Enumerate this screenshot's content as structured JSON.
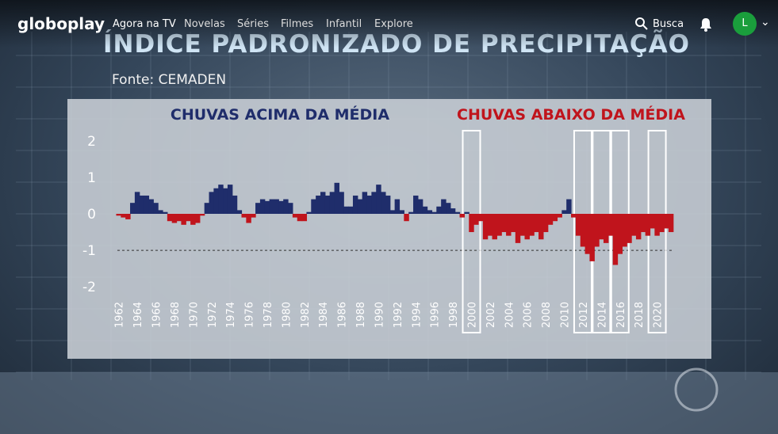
{
  "nav": {
    "logo": "globoplay",
    "items": [
      "Agora na TV",
      "Novelas",
      "Séries",
      "Filmes",
      "Infantil",
      "Explore"
    ],
    "search": "Busca",
    "avatar": "L"
  },
  "chart_data": {
    "type": "bar",
    "title": "ÍNDICE PADRONIZADO DE PRECIPITAÇÃO",
    "subtitle": "Fonte: CEMADEN",
    "annotations": [
      {
        "text": "CHUVAS ACIMA DA MÉDIA",
        "color": "#1f2d6b"
      },
      {
        "text": "CHUVAS ABAIXO DA MÉDIA",
        "color": "#c0141c"
      }
    ],
    "x": [
      1962,
      1962.5,
      1963,
      1963.5,
      1964,
      1964.5,
      1965,
      1965.5,
      1966,
      1966.5,
      1967,
      1967.5,
      1968,
      1968.5,
      1969,
      1969.5,
      1970,
      1970.5,
      1971,
      1971.5,
      1972,
      1972.5,
      1973,
      1973.5,
      1974,
      1974.5,
      1975,
      1975.5,
      1976,
      1976.5,
      1977,
      1977.5,
      1978,
      1978.5,
      1979,
      1979.5,
      1980,
      1980.5,
      1981,
      1981.5,
      1982,
      1982.5,
      1983,
      1983.5,
      1984,
      1984.5,
      1985,
      1985.5,
      1986,
      1986.5,
      1987,
      1987.5,
      1988,
      1988.5,
      1989,
      1989.5,
      1990,
      1990.5,
      1991,
      1991.5,
      1992,
      1992.5,
      1993,
      1993.5,
      1994,
      1994.5,
      1995,
      1995.5,
      1996,
      1996.5,
      1997,
      1997.5,
      1998,
      1998.5,
      1999,
      1999.5,
      2000,
      2000.5,
      2001,
      2001.5,
      2002,
      2002.5,
      2003,
      2003.5,
      2004,
      2004.5,
      2005,
      2005.5,
      2006,
      2006.5,
      2007,
      2007.5,
      2008,
      2008.5,
      2009,
      2009.5,
      2010,
      2010.5,
      2011,
      2011.5,
      2012,
      2012.5,
      2013,
      2013.5,
      2014,
      2014.5,
      2015,
      2015.5,
      2016,
      2016.5,
      2017,
      2017.5,
      2018,
      2018.5,
      2019,
      2019.5,
      2020,
      2020.5,
      2021,
      2021.5
    ],
    "values": [
      -0.05,
      -0.1,
      -0.15,
      0.3,
      0.6,
      0.5,
      0.5,
      0.4,
      0.3,
      0.1,
      0.05,
      -0.2,
      -0.25,
      -0.2,
      -0.3,
      -0.2,
      -0.3,
      -0.25,
      -0.05,
      0.3,
      0.6,
      0.7,
      0.8,
      0.7,
      0.8,
      0.5,
      0.1,
      -0.1,
      -0.25,
      -0.1,
      0.3,
      0.4,
      0.35,
      0.4,
      0.4,
      0.35,
      0.4,
      0.3,
      -0.1,
      -0.2,
      -0.2,
      0.05,
      0.4,
      0.5,
      0.6,
      0.5,
      0.6,
      0.85,
      0.6,
      0.2,
      0.2,
      0.5,
      0.4,
      0.6,
      0.5,
      0.6,
      0.8,
      0.6,
      0.5,
      0.1,
      0.4,
      0.1,
      -0.2,
      0.05,
      0.5,
      0.4,
      0.2,
      0.1,
      0.05,
      0.2,
      0.4,
      0.3,
      0.15,
      0.05,
      -0.1,
      0.05,
      -0.5,
      -0.3,
      -0.2,
      -0.7,
      -0.6,
      -0.7,
      -0.6,
      -0.5,
      -0.6,
      -0.5,
      -0.8,
      -0.6,
      -0.7,
      -0.6,
      -0.5,
      -0.7,
      -0.5,
      -0.3,
      -0.2,
      -0.1,
      0.1,
      0.4,
      -0.1,
      -0.6,
      -0.9,
      -1.1,
      -1.3,
      -0.9,
      -0.7,
      -0.8,
      -0.6,
      -1.4,
      -1.1,
      -0.9,
      -0.8,
      -0.6,
      -0.7,
      -0.5,
      -0.6,
      -0.4,
      -0.6,
      -0.5,
      -0.4,
      -0.5
    ],
    "positive_color": "#1f2d6b",
    "negative_color": "#c0141c",
    "xlim": [
      1961,
      2022
    ],
    "xticks": [
      1962,
      1964,
      1966,
      1968,
      1970,
      1972,
      1974,
      1976,
      1978,
      1980,
      1982,
      1984,
      1986,
      1988,
      1990,
      1992,
      1994,
      1996,
      1998,
      2000,
      2002,
      2004,
      2006,
      2008,
      2010,
      2012,
      2014,
      2016,
      2018,
      2020
    ],
    "ylim": [
      -2.3,
      2.3
    ],
    "yticks": [
      -2,
      -1,
      0,
      1,
      2
    ],
    "reference_line": -1,
    "highlight_years": [
      2000,
      2012,
      2014,
      2016,
      2020
    ]
  }
}
